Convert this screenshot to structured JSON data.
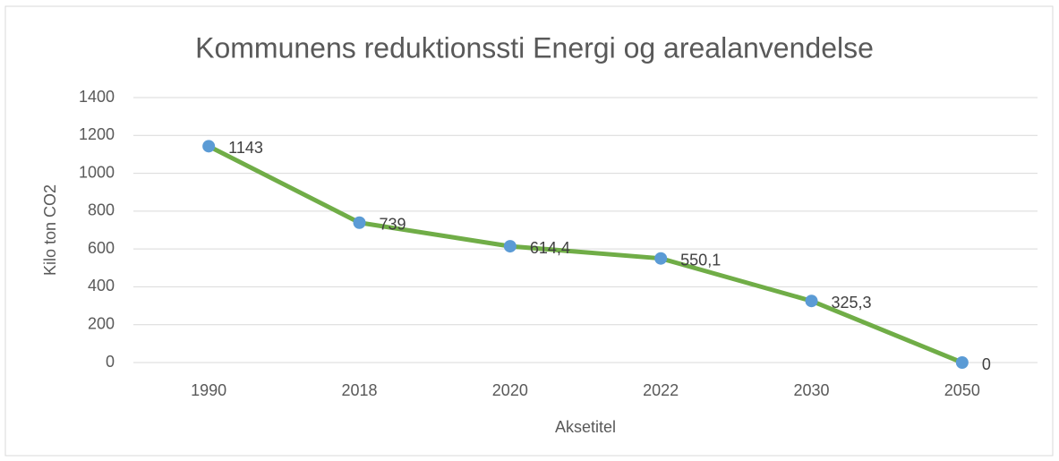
{
  "chart_data": {
    "type": "line",
    "title": "Kommunens reduktionssti Energi og arealanvendelse",
    "x_label": "Aksetitel",
    "y_label": "Kilo ton CO2",
    "categories": [
      "1990",
      "2018",
      "2020",
      "2022",
      "2030",
      "2050"
    ],
    "series": [
      {
        "name": "Kommunens reduktionssti",
        "color": "#70ad47",
        "marker_color": "#5b9bd5",
        "values": [
          1143,
          739,
          614.4,
          550.1,
          325.3,
          0
        ],
        "value_labels": [
          "1143",
          "739",
          "614,4",
          "550,1",
          "325,3",
          "0"
        ]
      }
    ],
    "ylim": [
      0,
      1400
    ],
    "yticks": [
      0,
      200,
      400,
      600,
      800,
      1000,
      1200,
      1400
    ],
    "grid": true,
    "legend": false
  }
}
